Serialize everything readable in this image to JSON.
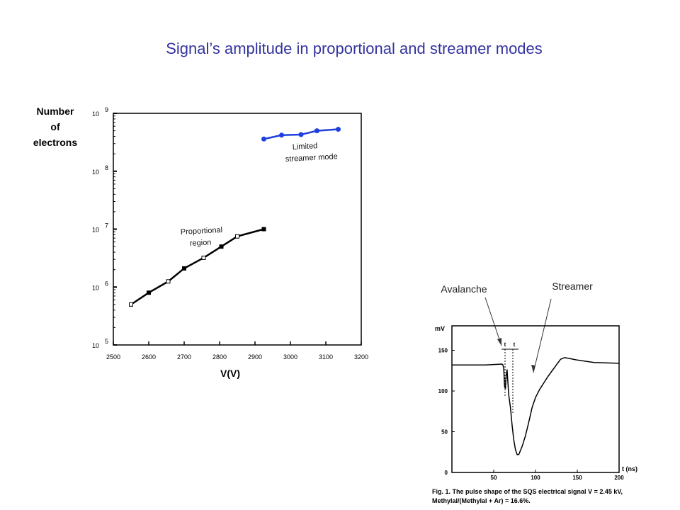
{
  "title": "Signal’s amplitude in proportional and streamer modes",
  "chart_data": [
    {
      "type": "line",
      "xlabel": "V(V)",
      "ylabel": "Number of electrons",
      "ylabel_lines": [
        "Number",
        "of",
        "electrons"
      ],
      "xlim": [
        2500,
        3200
      ],
      "ylim": [
        100000,
        1000000000
      ],
      "yscale": "log",
      "x_ticks": [
        2500,
        2600,
        2700,
        2800,
        2900,
        3000,
        3100,
        3200
      ],
      "y_ticks": [
        {
          "base": "10",
          "exp": "5",
          "value": 100000
        },
        {
          "base": "10",
          "exp": "6",
          "value": 1000000
        },
        {
          "base": "10",
          "exp": "7",
          "value": 10000000
        },
        {
          "base": "10",
          "exp": "8",
          "value": 100000000
        },
        {
          "base": "10",
          "exp": "9",
          "value": 1000000000
        }
      ],
      "grid": false,
      "series": [
        {
          "name": "Proportional region",
          "label_lines": [
            "Proportional",
            "region"
          ],
          "color": "#000000",
          "x": [
            2550,
            2600,
            2655,
            2700,
            2755,
            2805,
            2850,
            2925
          ],
          "y": [
            500000,
            800000,
            1250000,
            2100000,
            3200000,
            5000000,
            7500000,
            10000000
          ]
        },
        {
          "name": "Limited streamer mode",
          "label_lines": [
            "Limited",
            "streamer mode"
          ],
          "color": "#1f3fe0",
          "x": [
            2925,
            2975,
            3030,
            3075,
            3135
          ],
          "y": [
            360000000,
            420000000,
            430000000,
            500000000,
            530000000
          ]
        }
      ]
    },
    {
      "type": "line",
      "xlabel": "t (ns)",
      "ylabel": "mV",
      "xlim": [
        0,
        200
      ],
      "ylim": [
        0,
        180
      ],
      "x_ticks": [
        50,
        100,
        150,
        200
      ],
      "y_ticks": [
        0,
        50,
        100,
        150
      ],
      "grid": false,
      "marker_labels": [
        "t",
        "t"
      ],
      "annotations": [
        "Avalanche",
        "Streamer"
      ],
      "caption": "Fig. 1. The pulse shape of the SQS electrical signal V = 2.45 kV, Methylal/(Methylal + Ar) = 16.6%.",
      "series": [
        {
          "color": "#000000",
          "x": [
            0,
            40,
            60,
            61,
            62,
            63,
            64,
            65,
            66,
            67,
            68,
            70,
            72,
            74,
            76,
            78,
            80,
            84,
            88,
            92,
            96,
            100,
            105,
            110,
            115,
            120,
            125,
            130,
            135,
            140,
            150,
            170,
            200
          ],
          "y": [
            132,
            132,
            133,
            132,
            128,
            105,
            103,
            120,
            126,
            110,
            95,
            80,
            58,
            40,
            28,
            22,
            22,
            32,
            45,
            62,
            80,
            92,
            102,
            110,
            118,
            125,
            132,
            139,
            141,
            140,
            138,
            135,
            134
          ]
        }
      ]
    }
  ]
}
